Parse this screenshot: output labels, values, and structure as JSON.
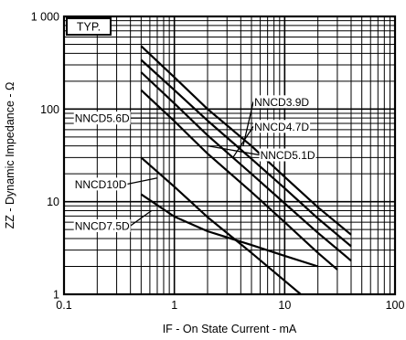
{
  "chart_data": {
    "type": "line",
    "title": "",
    "annotation": "TYP.",
    "xlabel": "IF -  On State Current  - mA",
    "ylabel": "ZZ - Dynamic Impedance - Ω",
    "x_scale": "log",
    "y_scale": "log",
    "xlim": [
      0.1,
      100
    ],
    "ylim": [
      1,
      1000
    ],
    "x_ticks": [
      0.1,
      1,
      10,
      100
    ],
    "x_tick_labels": [
      "0.1",
      "1",
      "10",
      "100"
    ],
    "y_ticks": [
      1,
      10,
      100,
      1000
    ],
    "y_tick_labels": [
      "1",
      "10",
      "100",
      "1 000"
    ],
    "grid": true,
    "series": [
      {
        "name": "NNCD3.9D",
        "x": [
          0.5,
          1,
          2,
          5,
          10,
          20,
          40
        ],
        "y": [
          480,
          220,
          100,
          40,
          18.5,
          8.7,
          4.4
        ]
      },
      {
        "name": "NNCD4.7D",
        "x": [
          0.5,
          1,
          2,
          5,
          10,
          20,
          40
        ],
        "y": [
          340,
          160,
          75,
          29,
          14,
          6.6,
          3.3
        ]
      },
      {
        "name": "NNCD5.1D",
        "x": [
          0.5,
          1,
          2,
          5,
          10,
          20,
          40
        ],
        "y": [
          250,
          115,
          52,
          20,
          9.6,
          4.6,
          2.3
        ]
      },
      {
        "name": "NNCD5.6D",
        "x": [
          0.5,
          1,
          2,
          5,
          10,
          20,
          30
        ],
        "y": [
          160,
          74,
          33,
          12.7,
          6,
          2.8,
          1.85
        ]
      },
      {
        "name": "NNCD7.5D",
        "x": [
          0.5,
          1,
          2,
          5,
          10,
          20
        ],
        "y": [
          30,
          14.5,
          6.8,
          2.8,
          1.4,
          0.7
        ]
      },
      {
        "name": "NNCD10D",
        "x": [
          0.5,
          1,
          2,
          5,
          10,
          20
        ],
        "y": [
          12,
          6.9,
          4.8,
          3.4,
          2.6,
          2.0
        ]
      }
    ],
    "labels": [
      {
        "text": "NNCD3.9D",
        "series": "NNCD3.9D",
        "at": [
          4.2,
          40
        ],
        "x": 5.3,
        "y": 120
      },
      {
        "text": "NNCD4.7D",
        "series": "NNCD4.7D",
        "at": [
          3.4,
          30
        ],
        "x": 5.3,
        "y": 65
      },
      {
        "text": "NNCD5.1D",
        "series": "NNCD5.1D",
        "at": [
          2.0,
          40
        ],
        "x": 6.0,
        "y": 32
      },
      {
        "text": "NNCD5.6D",
        "series": "NNCD5.6D",
        "at": [
          0.68,
          80
        ],
        "x": 0.125,
        "y": 80
      },
      {
        "text": "NNCD10D",
        "series": "NNCD10D",
        "at": [
          0.7,
          18
        ],
        "x": 0.125,
        "y": 15.5
      },
      {
        "text": "NNCD7.5D",
        "series": "NNCD7.5D",
        "at": [
          0.62,
          8
        ],
        "x": 0.125,
        "y": 5.5
      }
    ]
  }
}
